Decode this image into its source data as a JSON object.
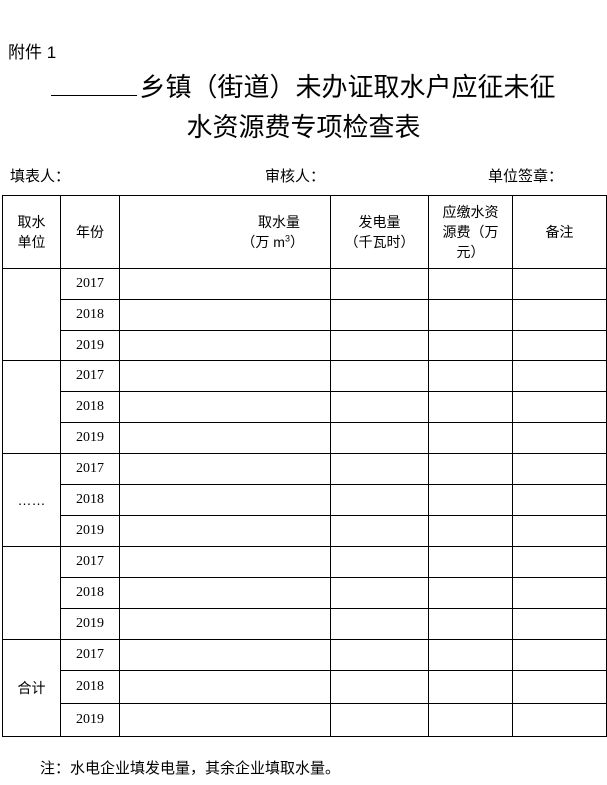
{
  "attachment_label": "附件 1",
  "title_line1": "乡镇（街道）未办证取水户应征未征",
  "title_line2": "水资源费专项检查表",
  "signatures": {
    "filler": "填表人：",
    "reviewer": "审核人：",
    "seal": "单位签章："
  },
  "table": {
    "headers": {
      "unit": [
        "取水",
        "单位"
      ],
      "year": "年份",
      "water": [
        "取水量",
        "（万 m",
        "3",
        "）"
      ],
      "power": [
        "发电量",
        "（千瓦时）"
      ],
      "fee": [
        "应缴水资",
        "源费（万",
        "元）"
      ],
      "remark": "备注"
    },
    "groups": [
      {
        "unit": "",
        "years": [
          "2017",
          "2018",
          "2019"
        ]
      },
      {
        "unit": "",
        "years": [
          "2017",
          "2018",
          "2019"
        ]
      },
      {
        "unit": "……",
        "years": [
          "2017",
          "2018",
          "2019"
        ]
      },
      {
        "unit": "",
        "years": [
          "2017",
          "2018",
          "2019"
        ]
      },
      {
        "unit": "合计",
        "years": [
          "2017",
          "2018",
          "2019"
        ]
      }
    ]
  },
  "note": "注：水电企业填发电量，其余企业填取水量。"
}
